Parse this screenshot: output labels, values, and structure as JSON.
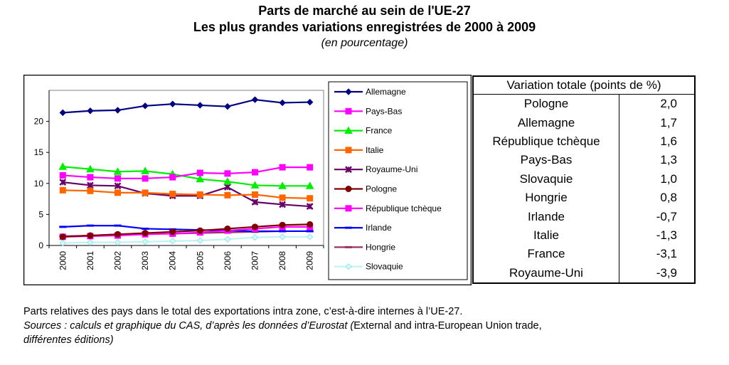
{
  "header": {
    "title": "Parts de marché au sein de l'UE-27",
    "subtitle": "Les plus grandes variations enregistrées de 2000 à 2009",
    "unit_note": "(en pourcentage)"
  },
  "chart_data": {
    "type": "line",
    "x": [
      "2000",
      "2001",
      "2002",
      "2003",
      "2004",
      "2005",
      "2006",
      "2007",
      "2008",
      "2009"
    ],
    "ylim": [
      0,
      25
    ],
    "yticks": [
      "0",
      "5",
      "10",
      "15",
      "20"
    ],
    "grid": false,
    "legend_position": "right",
    "series": [
      {
        "name": "Allemagne",
        "color": "#000080",
        "marker": "diamond",
        "values": [
          21.4,
          21.7,
          21.8,
          22.5,
          22.8,
          22.6,
          22.4,
          23.5,
          23.0,
          23.1
        ]
      },
      {
        "name": "Pays-Bas",
        "color": "#ff00ff",
        "marker": "square",
        "values": [
          11.3,
          11.0,
          10.8,
          10.8,
          11.0,
          11.7,
          11.6,
          11.8,
          12.6,
          12.6
        ]
      },
      {
        "name": "France",
        "color": "#00ee00",
        "marker": "triangle",
        "values": [
          12.7,
          12.3,
          11.9,
          12.0,
          11.5,
          10.7,
          10.3,
          9.7,
          9.6,
          9.6
        ]
      },
      {
        "name": "Italie",
        "color": "#ff6600",
        "marker": "square",
        "values": [
          8.9,
          8.8,
          8.5,
          8.5,
          8.3,
          8.2,
          8.1,
          8.2,
          7.7,
          7.6
        ]
      },
      {
        "name": "Royaume-Uni",
        "color": "#660066",
        "marker": "x",
        "values": [
          10.2,
          9.7,
          9.6,
          8.4,
          8.0,
          8.0,
          9.4,
          7.0,
          6.6,
          6.3
        ]
      },
      {
        "name": "Pologne",
        "color": "#800000",
        "marker": "circle",
        "values": [
          1.4,
          1.6,
          1.8,
          2.0,
          2.2,
          2.4,
          2.7,
          3.0,
          3.3,
          3.4
        ]
      },
      {
        "name": "République tchèque",
        "color": "#ff00ff",
        "marker": "square",
        "values": [
          1.4,
          1.5,
          1.6,
          1.8,
          1.9,
          2.1,
          2.4,
          2.7,
          3.0,
          3.0
        ]
      },
      {
        "name": "Irlande",
        "color": "#0000ff",
        "marker": "dash",
        "values": [
          3.0,
          3.2,
          3.2,
          2.7,
          2.6,
          2.5,
          2.4,
          2.3,
          2.3,
          2.3
        ]
      },
      {
        "name": "Hongrie",
        "color": "#993366",
        "marker": "dash",
        "values": [
          1.5,
          1.6,
          1.8,
          1.9,
          1.9,
          2.0,
          2.1,
          2.2,
          2.3,
          2.3
        ]
      },
      {
        "name": "Slovaquie",
        "color": "#ccffff",
        "marker": "diamond",
        "values": [
          0.4,
          0.5,
          0.5,
          0.6,
          0.7,
          0.8,
          1.0,
          1.3,
          1.4,
          1.4
        ]
      }
    ]
  },
  "table": {
    "header": "Variation totale (points de %)",
    "rows": [
      {
        "country": "Pologne",
        "value": "2,0"
      },
      {
        "country": "Allemagne",
        "value": "1,7"
      },
      {
        "country": "République tchèque",
        "value": "1,6"
      },
      {
        "country": "Pays-Bas",
        "value": "1,3"
      },
      {
        "country": "Slovaquie",
        "value": "1,0"
      },
      {
        "country": "Hongrie",
        "value": "0,8"
      },
      {
        "country": "Irlande",
        "value": "-0,7"
      },
      {
        "country": "Italie",
        "value": "-1,3"
      },
      {
        "country": "France",
        "value": "-3,1"
      },
      {
        "country": "Royaume-Uni",
        "value": "-3,9"
      }
    ]
  },
  "footnote": {
    "line1": "Parts relatives des pays dans le total des exportations intra zone, c’est-à-dire internes à l’UE-27.",
    "sources_italic": "Sources : calculs et graphique du CAS, d’après les données d’Eurostat (",
    "sources_normal": "External and intra-European Union trade,",
    "sources_end": "différentes éditions)"
  }
}
